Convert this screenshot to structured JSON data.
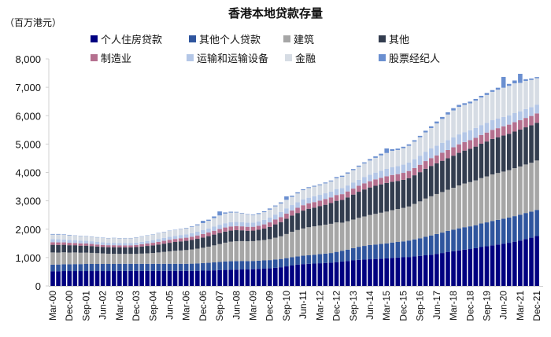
{
  "chart_data": {
    "type": "stacked-bar",
    "title": "香港本地贷款存量",
    "unit_label": "（百万港元）",
    "ylim": [
      0,
      8000
    ],
    "yticks": [
      "0",
      "1,000",
      "2,000",
      "3,000",
      "4,000",
      "5,000",
      "6,000",
      "7,000",
      "8,000"
    ],
    "frequency": "quarterly",
    "tick_labels": [
      "Mar-00",
      "Dec-00",
      "Sep-01",
      "Jun-02",
      "Mar-03",
      "Dec-03",
      "Sep-04",
      "Jun-05",
      "Mar-06",
      "Dec-06",
      "Sep-07",
      "Jun-08",
      "Mar-09",
      "Dec-09",
      "Sep-10",
      "Jun-11",
      "Mar-12",
      "Dec-12",
      "Sep-13",
      "Jun-14",
      "Mar-15",
      "Dec-15",
      "Sep-16",
      "Jun-17",
      "Mar-18",
      "Dec-18",
      "Sep-19",
      "Jun-20",
      "Mar-21",
      "Dec-21"
    ],
    "legend_position": "top",
    "grid": false,
    "series": [
      {
        "name": "个人住房贷款",
        "color": "#000080",
        "values": [
          520,
          520,
          525,
          525,
          525,
          525,
          525,
          525,
          525,
          525,
          525,
          525,
          530,
          530,
          530,
          530,
          530,
          530,
          530,
          530,
          530,
          530,
          530,
          530,
          530,
          530,
          535,
          540,
          545,
          550,
          555,
          565,
          570,
          575,
          580,
          580,
          590,
          600,
          610,
          620,
          640,
          660,
          690,
          720,
          750,
          770,
          780,
          790,
          800,
          810,
          820,
          840,
          860,
          880,
          900,
          920,
          930,
          940,
          950,
          960,
          970,
          990,
          1000,
          1010,
          1020,
          1040,
          1060,
          1080,
          1100,
          1130,
          1160,
          1200,
          1220,
          1250,
          1280,
          1300,
          1330,
          1370,
          1400,
          1430,
          1460,
          1490,
          1520,
          1560,
          1600,
          1650,
          1700,
          1760
        ]
      },
      {
        "name": "其他个人贷款",
        "color": "#2F559E",
        "values": [
          230,
          235,
          240,
          240,
          245,
          245,
          250,
          250,
          250,
          250,
          250,
          250,
          250,
          250,
          250,
          250,
          250,
          250,
          250,
          250,
          250,
          250,
          250,
          250,
          250,
          255,
          260,
          265,
          270,
          280,
          290,
          300,
          300,
          300,
          300,
          295,
          290,
          290,
          290,
          290,
          290,
          290,
          290,
          290,
          290,
          295,
          300,
          310,
          320,
          330,
          340,
          360,
          380,
          400,
          430,
          460,
          480,
          500,
          510,
          520,
          530,
          540,
          550,
          560,
          580,
          600,
          620,
          650,
          680,
          700,
          720,
          740,
          760,
          780,
          790,
          800,
          810,
          830,
          840,
          860,
          870,
          880,
          890,
          900,
          910,
          920,
          920,
          920
        ]
      },
      {
        "name": "建筑",
        "color": "#A6A6A6",
        "values": [
          430,
          420,
          420,
          410,
          410,
          400,
          400,
          390,
          380,
          370,
          360,
          360,
          350,
          350,
          350,
          350,
          360,
          370,
          380,
          400,
          420,
          440,
          460,
          470,
          485,
          500,
          520,
          540,
          570,
          600,
          630,
          660,
          690,
          700,
          700,
          700,
          700,
          710,
          720,
          740,
          770,
          800,
          850,
          900,
          930,
          960,
          990,
          1000,
          1010,
          1020,
          1030,
          1040,
          990,
          1000,
          1010,
          1020,
          1040,
          1060,
          1080,
          1100,
          1120,
          1140,
          1160,
          1180,
          1200,
          1250,
          1300,
          1350,
          1380,
          1410,
          1430,
          1450,
          1480,
          1510,
          1540,
          1560,
          1580,
          1600,
          1620,
          1640,
          1650,
          1660,
          1670,
          1690,
          1700,
          1710,
          1720,
          1740
        ]
      },
      {
        "name": "其他",
        "color": "#333D4F",
        "values": [
          270,
          270,
          265,
          260,
          255,
          250,
          245,
          240,
          235,
          230,
          230,
          230,
          230,
          230,
          230,
          240,
          250,
          260,
          270,
          280,
          290,
          300,
          310,
          320,
          325,
          335,
          345,
          360,
          370,
          380,
          390,
          390,
          390,
          390,
          380,
          370,
          370,
          380,
          400,
          430,
          470,
          500,
          540,
          570,
          600,
          630,
          650,
          660,
          680,
          700,
          730,
          760,
          800,
          840,
          880,
          920,
          950,
          970,
          990,
          1000,
          1010,
          1000,
          990,
          990,
          1000,
          1010,
          1030,
          1050,
          1070,
          1080,
          1100,
          1110,
          1130,
          1150,
          1160,
          1170,
          1190,
          1210,
          1230,
          1250,
          1260,
          1270,
          1280,
          1290,
          1300,
          1310,
          1320,
          1330
        ]
      },
      {
        "name": "制造业",
        "color": "#B5708F",
        "values": [
          90,
          90,
          85,
          85,
          80,
          80,
          75,
          75,
          70,
          70,
          70,
          70,
          70,
          70,
          70,
          75,
          80,
          85,
          90,
          95,
          100,
          105,
          105,
          110,
          110,
          115,
          120,
          125,
          130,
          135,
          140,
          145,
          145,
          145,
          140,
          140,
          135,
          140,
          150,
          160,
          170,
          175,
          180,
          180,
          185,
          190,
          190,
          195,
          195,
          200,
          200,
          205,
          205,
          210,
          210,
          210,
          215,
          220,
          225,
          230,
          235,
          240,
          240,
          245,
          250,
          255,
          260,
          270,
          275,
          280,
          285,
          290,
          295,
          300,
          300,
          305,
          310,
          310,
          315,
          320,
          320,
          325,
          325,
          330,
          330,
          330,
          330,
          330
        ]
      },
      {
        "name": "运输和运输设备",
        "color": "#B4C7E7",
        "values": [
          110,
          110,
          105,
          105,
          100,
          100,
          95,
          95,
          90,
          90,
          85,
          85,
          80,
          80,
          80,
          80,
          85,
          90,
          95,
          100,
          105,
          110,
          110,
          115,
          120,
          125,
          130,
          135,
          140,
          145,
          150,
          150,
          150,
          150,
          150,
          150,
          150,
          155,
          160,
          170,
          175,
          180,
          185,
          190,
          195,
          200,
          200,
          205,
          205,
          205,
          205,
          210,
          210,
          210,
          210,
          210,
          220,
          230,
          240,
          250,
          260,
          270,
          280,
          290,
          300,
          310,
          320,
          330,
          340,
          345,
          350,
          350,
          350,
          350,
          350,
          350,
          350,
          350,
          345,
          340,
          335,
          330,
          325,
          320,
          315,
          315,
          310,
          310
        ]
      },
      {
        "name": "金融",
        "color": "#D6DCE4",
        "values": [
          160,
          165,
          165,
          160,
          155,
          155,
          160,
          160,
          160,
          160,
          160,
          165,
          165,
          170,
          170,
          180,
          185,
          190,
          195,
          200,
          200,
          205,
          205,
          210,
          210,
          220,
          230,
          250,
          270,
          300,
          330,
          340,
          340,
          330,
          310,
          280,
          260,
          260,
          270,
          280,
          290,
          300,
          300,
          290,
          310,
          330,
          340,
          340,
          340,
          350,
          360,
          380,
          400,
          420,
          440,
          460,
          480,
          500,
          520,
          540,
          560,
          580,
          570,
          580,
          590,
          620,
          650,
          680,
          720,
          780,
          840,
          900,
          950,
          970,
          960,
          950,
          960,
          970,
          980,
          1000,
          1020,
          1030,
          1040,
          1050,
          1000,
          990,
          960,
          930
        ]
      },
      {
        "name": "股票经纪人",
        "color": "#6A8FD0",
        "values": [
          20,
          20,
          15,
          15,
          10,
          10,
          10,
          10,
          10,
          10,
          10,
          10,
          10,
          10,
          10,
          10,
          10,
          10,
          10,
          10,
          10,
          10,
          10,
          10,
          15,
          20,
          30,
          80,
          40,
          60,
          140,
          40,
          30,
          20,
          15,
          15,
          20,
          30,
          30,
          40,
          30,
          40,
          120,
          40,
          40,
          30,
          30,
          30,
          30,
          30,
          30,
          40,
          40,
          40,
          40,
          40,
          40,
          50,
          50,
          60,
          160,
          60,
          50,
          50,
          50,
          50,
          50,
          60,
          60,
          70,
          70,
          80,
          80,
          70,
          60,
          60,
          60,
          60,
          70,
          60,
          70,
          380,
          70,
          100,
          320,
          60,
          50,
          40
        ]
      }
    ]
  }
}
